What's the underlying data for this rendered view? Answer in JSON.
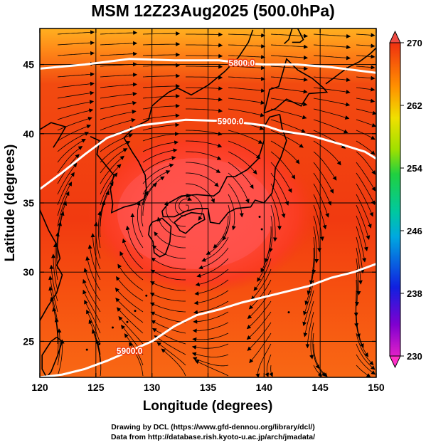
{
  "title": "MSM 12Z23Aug2025 (500.0hPa)",
  "xlabel": "Longitude (degrees)",
  "ylabel": "Latitude  (degrees)",
  "credits": {
    "drawing": "Drawing by DCL (https://www.gfd-dennou.org/library/dcl/)",
    "data": "Data from http://database.rish.kyoto-u.ac.jp/arch/jmadata/"
  },
  "chart_data": {
    "type": "heatmap",
    "title": "MSM 12Z23Aug2025 (500.0hPa)",
    "xlabel": "Longitude (degrees)",
    "ylabel": "Latitude  (degrees)",
    "xlim": [
      120,
      150
    ],
    "ylim": [
      22.4,
      47.6
    ],
    "x_ticks": [
      120,
      125,
      130,
      135,
      140,
      145,
      150
    ],
    "y_ticks": [
      25,
      30,
      35,
      40,
      45
    ],
    "grid": true,
    "colorbar": {
      "range": [
        230,
        270
      ],
      "ticks": [
        230,
        238,
        246,
        254,
        262,
        270
      ],
      "colors": [
        "#e020c8",
        "#8000d0",
        "#1020e0",
        "#00a8e0",
        "#00c8a0",
        "#20d040",
        "#a0e000",
        "#f0e000",
        "#ff9000",
        "#f03010"
      ],
      "extend": "both"
    },
    "field_description_values": {
      "center": {
        "lon": 133,
        "lat": 34.5,
        "value": 269
      },
      "background_value": 267,
      "north_value": 264
    },
    "contours": [
      {
        "label": "5800.0",
        "points": [
          [
            120,
            44.7
          ],
          [
            124,
            45.0
          ],
          [
            128,
            45.4
          ],
          [
            132,
            45.3
          ],
          [
            136,
            45.3
          ],
          [
            138,
            45.1
          ],
          [
            140,
            45.0
          ],
          [
            143,
            45.0
          ],
          [
            146,
            44.8
          ],
          [
            150,
            44.4
          ]
        ]
      },
      {
        "label": "5900.0",
        "points": [
          [
            120,
            36.0
          ],
          [
            122,
            37.2
          ],
          [
            124,
            38.5
          ],
          [
            126,
            39.7
          ],
          [
            129,
            40.6
          ],
          [
            133,
            41.0
          ],
          [
            137,
            40.9
          ],
          [
            140,
            40.6
          ],
          [
            141.5,
            40.2
          ],
          [
            144,
            39.9
          ],
          [
            147,
            39.2
          ],
          [
            149,
            38.7
          ],
          [
            150,
            38.2
          ]
        ]
      },
      {
        "label": "5900.0",
        "points": [
          [
            120,
            22.4
          ],
          [
            122,
            22.6
          ],
          [
            124,
            23.0
          ],
          [
            126,
            23.6
          ],
          [
            128,
            24.3
          ],
          [
            130,
            25.0
          ],
          [
            132,
            26.1
          ],
          [
            134,
            26.9
          ],
          [
            136,
            27.3
          ],
          [
            138,
            27.8
          ],
          [
            140,
            28.2
          ],
          [
            142,
            28.6
          ],
          [
            144,
            29.0
          ],
          [
            146,
            29.6
          ],
          [
            148,
            30.0
          ],
          [
            150,
            30.6
          ]
        ]
      }
    ],
    "streamline_pattern": "anticyclonic (clockwise) circulation centered near 133E 35N, westerlies to the north"
  }
}
